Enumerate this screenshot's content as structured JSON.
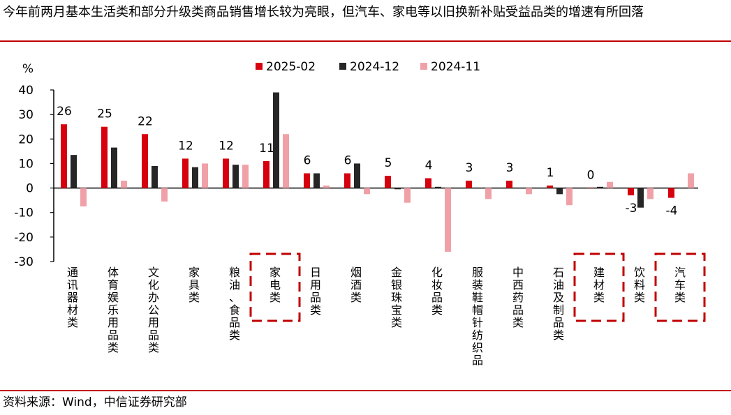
{
  "title": "今年前两月基本生活类和部分升级类商品销售增长较为亮眼，但汽车、家电等以旧换新补贴受益品类的增速有所回落",
  "source": "资料来源：Wind，中信证券研究部",
  "colors": {
    "rule": "#c00000",
    "series_2025_02": "#d7000f",
    "series_2024_12": "#262626",
    "series_2024_11": "#f0a1a8",
    "highlight_box": "#c00000"
  },
  "chart_data": {
    "type": "bar",
    "ylabel": "%",
    "ylim": [
      -30,
      40
    ],
    "yticks": [
      40,
      30,
      20,
      10,
      0,
      -10,
      -20,
      -30
    ],
    "categories": [
      "通讯器材类",
      "体育娱乐用品类",
      "文化办公用品类",
      "家具类",
      "粮油、食品类",
      "家电类",
      "日用品类",
      "烟酒类",
      "金银珠宝类",
      "化妆品类",
      "服装鞋帽针纺织品",
      "中西药品类",
      "石油及制品类",
      "建材类",
      "饮料类",
      "汽车类"
    ],
    "series": [
      {
        "name": "2025-02",
        "values": [
          26,
          25,
          22,
          12,
          12,
          11,
          6,
          6,
          5,
          4,
          3,
          3,
          1,
          0,
          -3,
          -4
        ]
      },
      {
        "name": "2024-12",
        "values": [
          13.5,
          16.5,
          9,
          8.5,
          9.5,
          39,
          6,
          10,
          -0.5,
          0.5,
          0,
          0,
          -2.5,
          0.5,
          -8,
          0
        ]
      },
      {
        "name": "2024-11",
        "values": [
          -7.5,
          3,
          -5.5,
          10,
          9.5,
          22,
          1,
          -2.5,
          -6,
          -26,
          -4.5,
          -2.5,
          -7,
          2.5,
          -4.5,
          6
        ]
      }
    ],
    "data_labels": [
      "26",
      "25",
      "22",
      "12",
      "12",
      "11",
      "6",
      "6",
      "5",
      "4",
      "3",
      "3",
      "1",
      "0",
      "-3",
      "-4"
    ],
    "highlighted_categories": [
      "家电类",
      "建材类",
      "汽车类"
    ],
    "legend_position": "top",
    "grid": false
  }
}
